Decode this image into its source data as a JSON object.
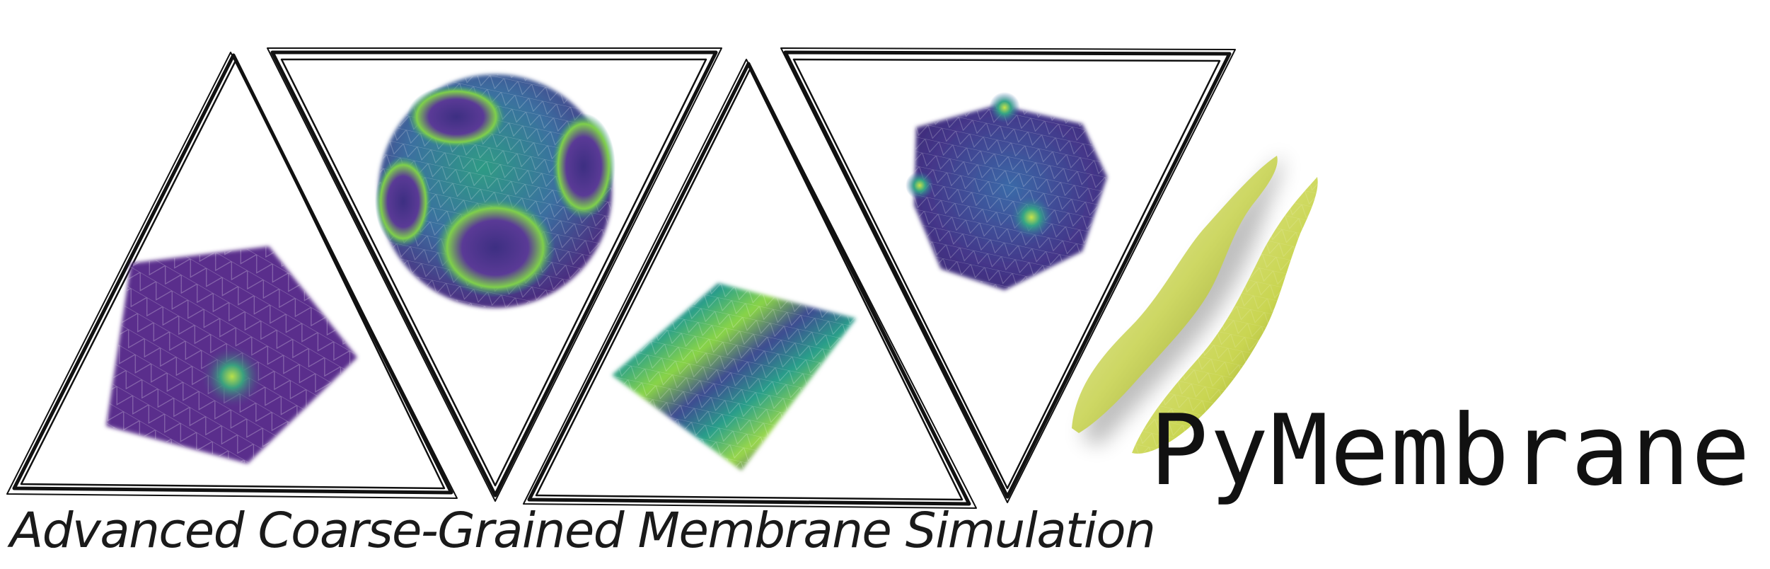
{
  "logo": {
    "wordmark": "PyMembrane",
    "icon": "cell-membrane-icon",
    "icon_color": "#c8d24a"
  },
  "tagline": "Advanced Coarse-Grained Membrane Simulation",
  "panels": [
    {
      "shape": "triangle-up",
      "content": "flat-membrane-patch-with-defect"
    },
    {
      "shape": "triangle-down",
      "content": "deformed-spherical-vesicle"
    },
    {
      "shape": "triangle-up",
      "content": "rippled-membrane-sheet"
    },
    {
      "shape": "triangle-down",
      "content": "faceted-icosahedral-vesicle"
    }
  ],
  "colors": {
    "outline": "#111111",
    "surface_dark": "#472c7a",
    "surface_mid": "#2c8a8a",
    "surface_light": "#8bd646"
  }
}
